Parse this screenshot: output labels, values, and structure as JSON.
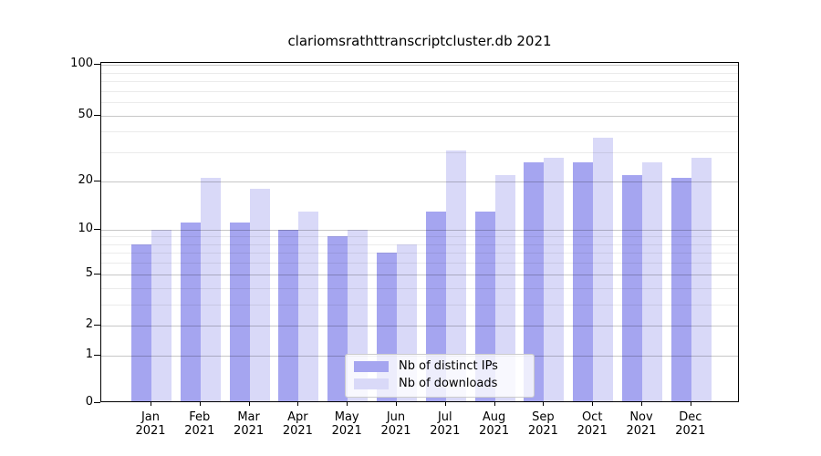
{
  "title": "clariomsrathttranscriptcluster.db 2021",
  "chart_data": {
    "type": "bar",
    "title": "clariomsrathttranscriptcluster.db 2021",
    "x_tick_labels": [
      {
        "month": "Jan",
        "year": "2021"
      },
      {
        "month": "Feb",
        "year": "2021"
      },
      {
        "month": "Mar",
        "year": "2021"
      },
      {
        "month": "Apr",
        "year": "2021"
      },
      {
        "month": "May",
        "year": "2021"
      },
      {
        "month": "Jun",
        "year": "2021"
      },
      {
        "month": "Jul",
        "year": "2021"
      },
      {
        "month": "Aug",
        "year": "2021"
      },
      {
        "month": "Sep",
        "year": "2021"
      },
      {
        "month": "Oct",
        "year": "2021"
      },
      {
        "month": "Nov",
        "year": "2021"
      },
      {
        "month": "Dec",
        "year": "2021"
      }
    ],
    "series": [
      {
        "name": "Nb of distinct IPs",
        "color": "#a5a5f0",
        "values": [
          8,
          11,
          11,
          10,
          9,
          7,
          13,
          13,
          26,
          26,
          22,
          21
        ]
      },
      {
        "name": "Nb of downloads",
        "color": "#d9d9f8",
        "values": [
          10,
          21,
          18,
          13,
          10,
          8,
          31,
          22,
          28,
          37,
          26,
          28
        ]
      }
    ],
    "y_axis": {
      "scale": "log10(value+1)",
      "major_ticks": [
        100,
        50,
        20,
        10,
        5,
        2,
        1,
        0
      ],
      "minor_ticks": [
        90,
        80,
        70,
        60,
        40,
        30,
        9,
        8,
        7,
        6,
        4,
        3
      ],
      "top_value": 102
    },
    "grid": true,
    "legend_position": "bottom-center"
  }
}
